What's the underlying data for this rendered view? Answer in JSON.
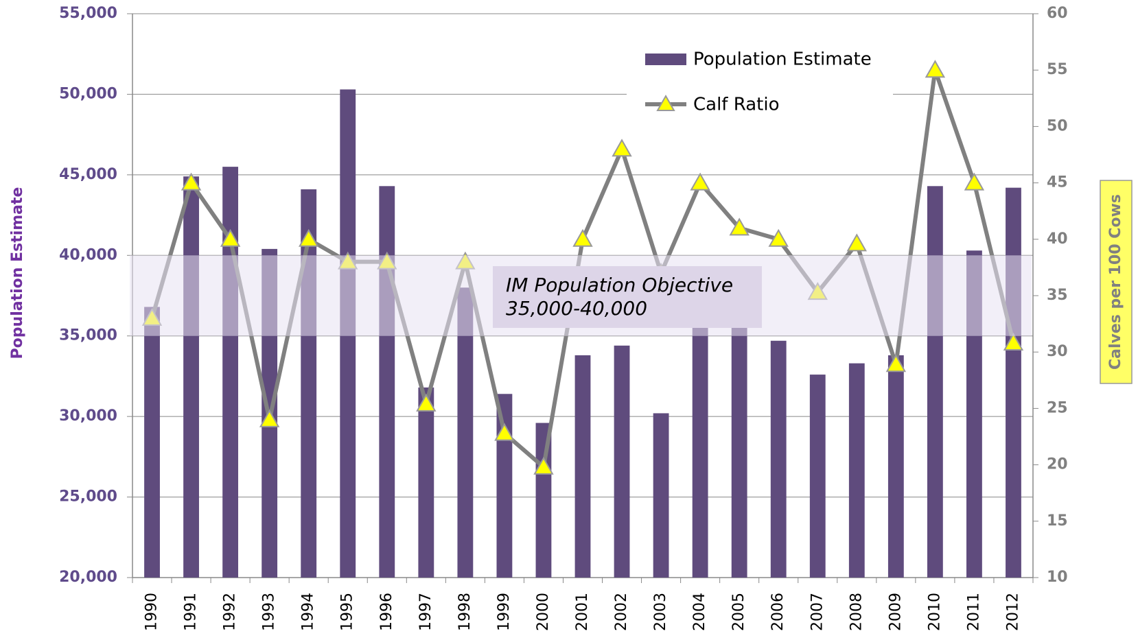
{
  "chart_data": {
    "type": "bar_line",
    "categories": [
      "1990",
      "1991",
      "1992",
      "1993",
      "1994",
      "1995",
      "1996",
      "1997",
      "1998",
      "1999",
      "2000",
      "2001",
      "2002",
      "2003",
      "2004",
      "2005",
      "2006",
      "2007",
      "2008",
      "2009",
      "2010",
      "2011",
      "2012"
    ],
    "series": [
      {
        "name": "Population Estimate",
        "type": "bar",
        "color": "#5f4b7d",
        "values": [
          36800,
          44900,
          45500,
          40400,
          44100,
          50300,
          44300,
          31800,
          38000,
          31400,
          29600,
          33800,
          34400,
          30200,
          35500,
          35500,
          34700,
          32600,
          33300,
          33800,
          44300,
          40300,
          44200
        ]
      },
      {
        "name": "Calf Ratio",
        "type": "line",
        "axis": "y2",
        "color": "#808080",
        "marker_color": "#ffff00",
        "values": [
          33,
          45,
          40,
          24,
          40,
          38,
          38,
          25.4,
          38,
          22.8,
          19.8,
          40,
          48,
          37,
          45,
          41,
          40,
          35.3,
          39.6,
          28.9,
          55,
          45,
          30.8
        ]
      }
    ],
    "ylabel": "Population Estimate",
    "y2label": "Calves per 100 Cows",
    "ylim": [
      20000,
      55000
    ],
    "yticks": [
      {
        "value": 20000,
        "label": "20,000"
      },
      {
        "value": 25000,
        "label": "25,000"
      },
      {
        "value": 30000,
        "label": "30,000"
      },
      {
        "value": 35000,
        "label": "35,000"
      },
      {
        "value": 40000,
        "label": "40,000"
      },
      {
        "value": 45000,
        "label": "45,000"
      },
      {
        "value": 50000,
        "label": "50,000"
      },
      {
        "value": 55000,
        "label": "55,000"
      }
    ],
    "y2lim": [
      10,
      60
    ],
    "y2ticks": [
      10,
      15,
      20,
      25,
      30,
      35,
      40,
      45,
      50,
      55,
      60
    ],
    "grid": true,
    "objective_band": [
      35000,
      40000
    ],
    "annotation": [
      "IM Population Objective",
      "35,000-40,000"
    ]
  }
}
